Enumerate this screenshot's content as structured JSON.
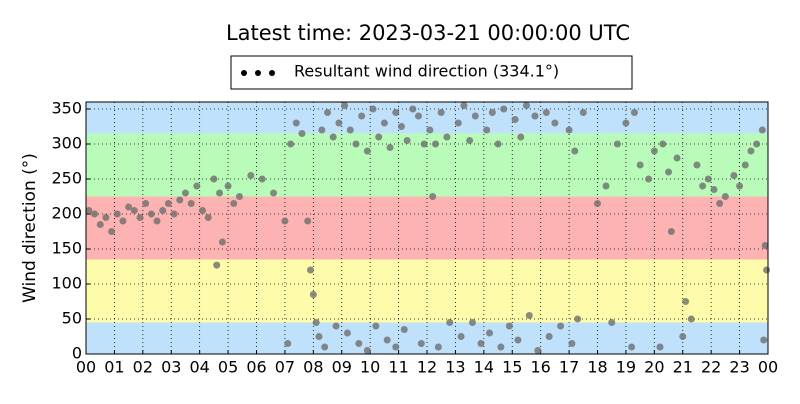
{
  "chart_data": {
    "type": "scatter",
    "title": "Latest time: 2023-03-21 00:00:00 UTC",
    "y_label": "Wind direction (°)",
    "xlim": [
      0,
      24
    ],
    "ylim": [
      0,
      360
    ],
    "grid": true,
    "xticks": [
      {
        "value": 0,
        "label": "00"
      },
      {
        "value": 1,
        "label": "01"
      },
      {
        "value": 2,
        "label": "02"
      },
      {
        "value": 3,
        "label": "03"
      },
      {
        "value": 4,
        "label": "04"
      },
      {
        "value": 5,
        "label": "05"
      },
      {
        "value": 6,
        "label": "06"
      },
      {
        "value": 7,
        "label": "07"
      },
      {
        "value": 8,
        "label": "08"
      },
      {
        "value": 9,
        "label": "09"
      },
      10,
      11,
      12,
      13,
      14,
      15,
      16,
      17,
      18,
      19,
      20,
      21,
      22,
      23,
      {
        "value": 24,
        "label": "00"
      }
    ],
    "yticks": [
      0,
      50,
      100,
      150,
      200,
      250,
      300,
      350
    ],
    "bands": [
      {
        "from": 0,
        "to": 45,
        "color": "#bfe1fc"
      },
      {
        "from": 45,
        "to": 135,
        "color": "#fefcaa"
      },
      {
        "from": 135,
        "to": 225,
        "color": "#feb3b3"
      },
      {
        "from": 225,
        "to": 315,
        "color": "#b9fcb9"
      },
      {
        "from": 315,
        "to": 360,
        "color": "#bfe1fc"
      }
    ],
    "series": [
      {
        "name": "Resultant wind direction (334.1°)",
        "color": "#6e6e6e",
        "x": [
          0.1,
          0.3,
          0.5,
          0.7,
          0.9,
          1.1,
          1.3,
          1.5,
          1.7,
          1.9,
          2.1,
          2.3,
          2.5,
          2.7,
          2.9,
          3.1,
          3.3,
          3.5,
          3.7,
          3.9,
          4.1,
          4.3,
          4.5,
          4.7,
          4.8,
          4.6,
          5.0,
          5.2,
          5.4,
          5.8,
          6.2,
          6.6,
          7.0,
          7.2,
          7.4,
          7.6,
          7.1,
          7.8,
          7.9,
          8.0,
          8.1,
          8.2,
          8.3,
          8.5,
          8.7,
          8.9,
          8.4,
          8.8,
          9.1,
          9.3,
          9.5,
          9.7,
          9.9,
          9.2,
          9.6,
          9.9,
          10.1,
          10.3,
          10.5,
          10.7,
          10.9,
          10.2,
          10.6,
          10.9,
          11.1,
          11.3,
          11.5,
          11.7,
          11.9,
          11.2,
          11.8,
          12.1,
          12.3,
          12.5,
          12.7,
          12.4,
          12.2,
          12.8,
          13.1,
          13.3,
          13.5,
          13.7,
          13.2,
          13.6,
          13.9,
          14.1,
          14.3,
          14.5,
          14.7,
          14.2,
          14.6,
          14.9,
          15.1,
          15.3,
          15.5,
          15.8,
          15.2,
          15.6,
          15.9,
          16.2,
          16.5,
          16.3,
          16.7,
          17.0,
          17.2,
          17.5,
          17.1,
          17.3,
          18.0,
          18.3,
          18.7,
          18.5,
          19.0,
          19.3,
          19.5,
          19.2,
          19.8,
          20.0,
          20.3,
          20.5,
          20.6,
          20.8,
          20.2,
          21.0,
          21.1,
          21.3,
          21.5,
          21.7,
          21.9,
          22.1,
          22.3,
          22.5,
          22.8,
          23.0,
          23.2,
          23.4,
          23.6,
          23.8,
          23.9,
          23.95,
          23.85
        ],
        "values": [
          205,
          200,
          185,
          195,
          175,
          200,
          190,
          210,
          205,
          195,
          215,
          200,
          190,
          205,
          215,
          200,
          220,
          230,
          215,
          240,
          205,
          195,
          250,
          230,
          160,
          127,
          240,
          215,
          225,
          255,
          250,
          230,
          190,
          300,
          330,
          315,
          15,
          190,
          120,
          85,
          45,
          25,
          320,
          345,
          310,
          330,
          10,
          40,
          355,
          320,
          300,
          340,
          290,
          30,
          15,
          5,
          350,
          310,
          330,
          295,
          345,
          40,
          20,
          10,
          325,
          305,
          350,
          340,
          300,
          35,
          15,
          320,
          300,
          345,
          310,
          10,
          225,
          45,
          330,
          355,
          305,
          340,
          25,
          45,
          15,
          320,
          345,
          300,
          350,
          30,
          10,
          40,
          335,
          310,
          355,
          340,
          20,
          55,
          5,
          345,
          330,
          25,
          40,
          320,
          290,
          345,
          15,
          50,
          215,
          240,
          300,
          45,
          330,
          345,
          270,
          10,
          250,
          290,
          300,
          260,
          175,
          280,
          10,
          25,
          75,
          50,
          270,
          240,
          250,
          235,
          215,
          225,
          255,
          240,
          270,
          290,
          300,
          320,
          155,
          120,
          20
        ]
      }
    ]
  }
}
